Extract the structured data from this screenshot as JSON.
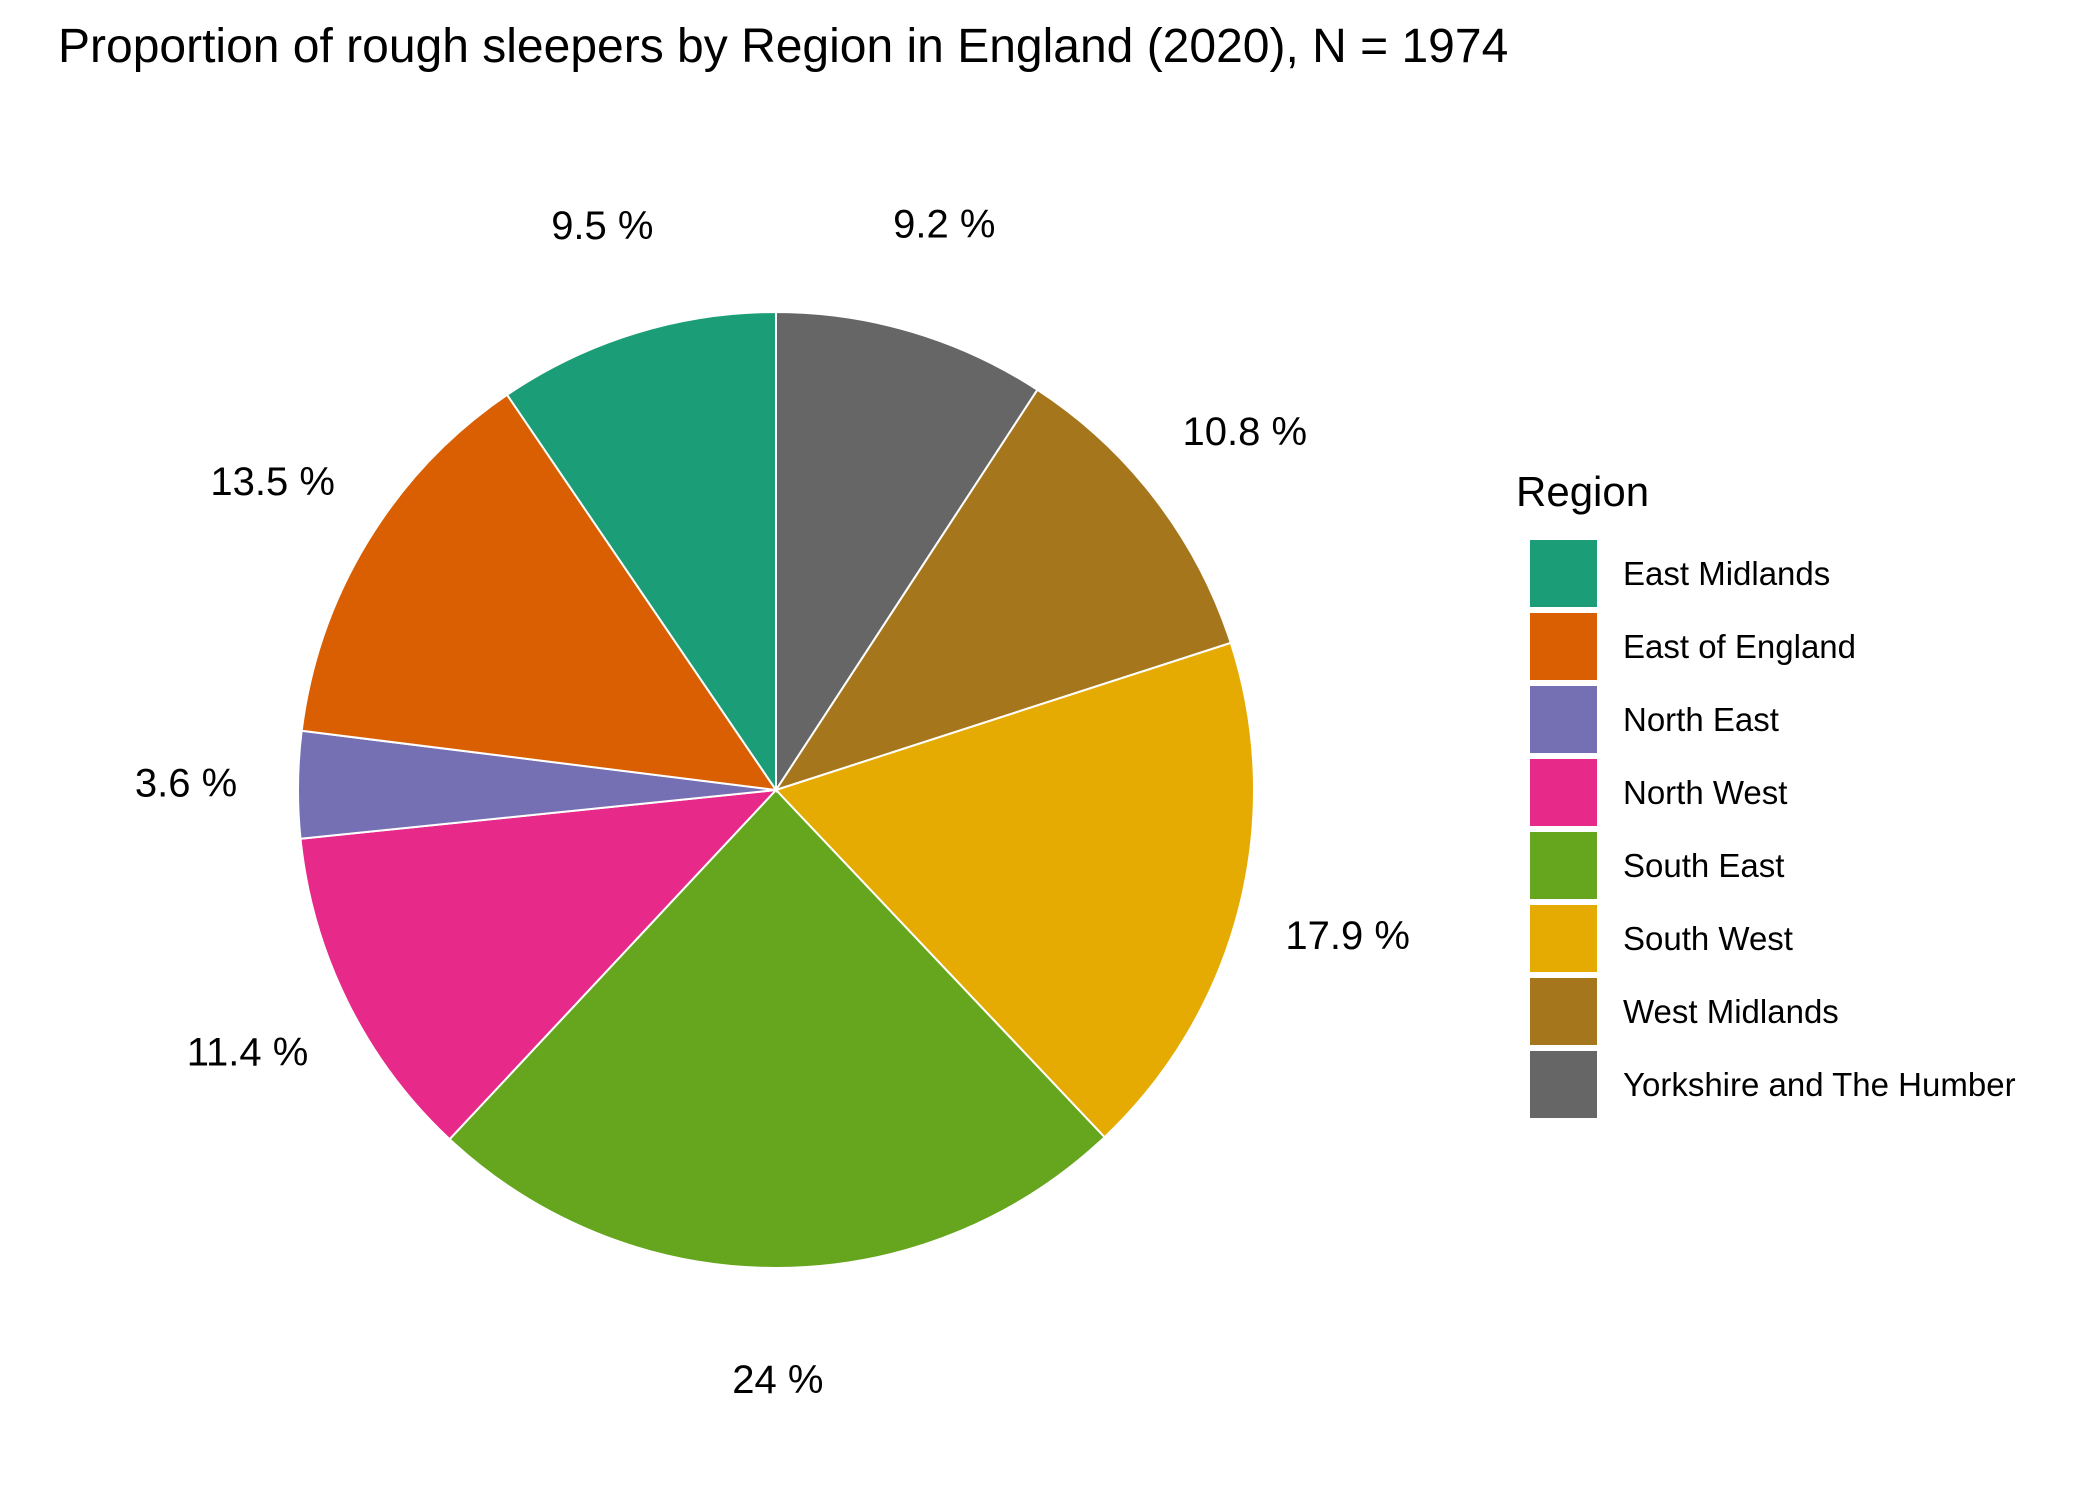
{
  "chart_data": {
    "type": "pie",
    "title": "Proportion of rough sleepers by Region in England (2020), N = 1974",
    "legend_title": "Region",
    "legend_position": "right",
    "direction": "clockwise",
    "start": "top",
    "categories": [
      "Yorkshire and The Humber",
      "West Midlands",
      "South West",
      "South East",
      "North West",
      "North East",
      "East of England",
      "East Midlands"
    ],
    "values": [
      9.2,
      10.8,
      17.9,
      24.0,
      11.4,
      3.6,
      13.5,
      9.5
    ],
    "value_labels": [
      "9.2 %",
      "10.8 %",
      "17.9 %",
      "24 %",
      "11.4 %",
      "3.6 %",
      "13.5 %",
      "9.5 %"
    ],
    "colors": [
      "#666666",
      "#A6761D",
      "#E6AB02",
      "#66A61E",
      "#E7298A",
      "#7570B3",
      "#D95F02",
      "#1B9E77"
    ],
    "legend_order": [
      "East Midlands",
      "East of England",
      "North East",
      "North West",
      "South East",
      "South West",
      "West Midlands",
      "Yorkshire and The Humber"
    ]
  }
}
